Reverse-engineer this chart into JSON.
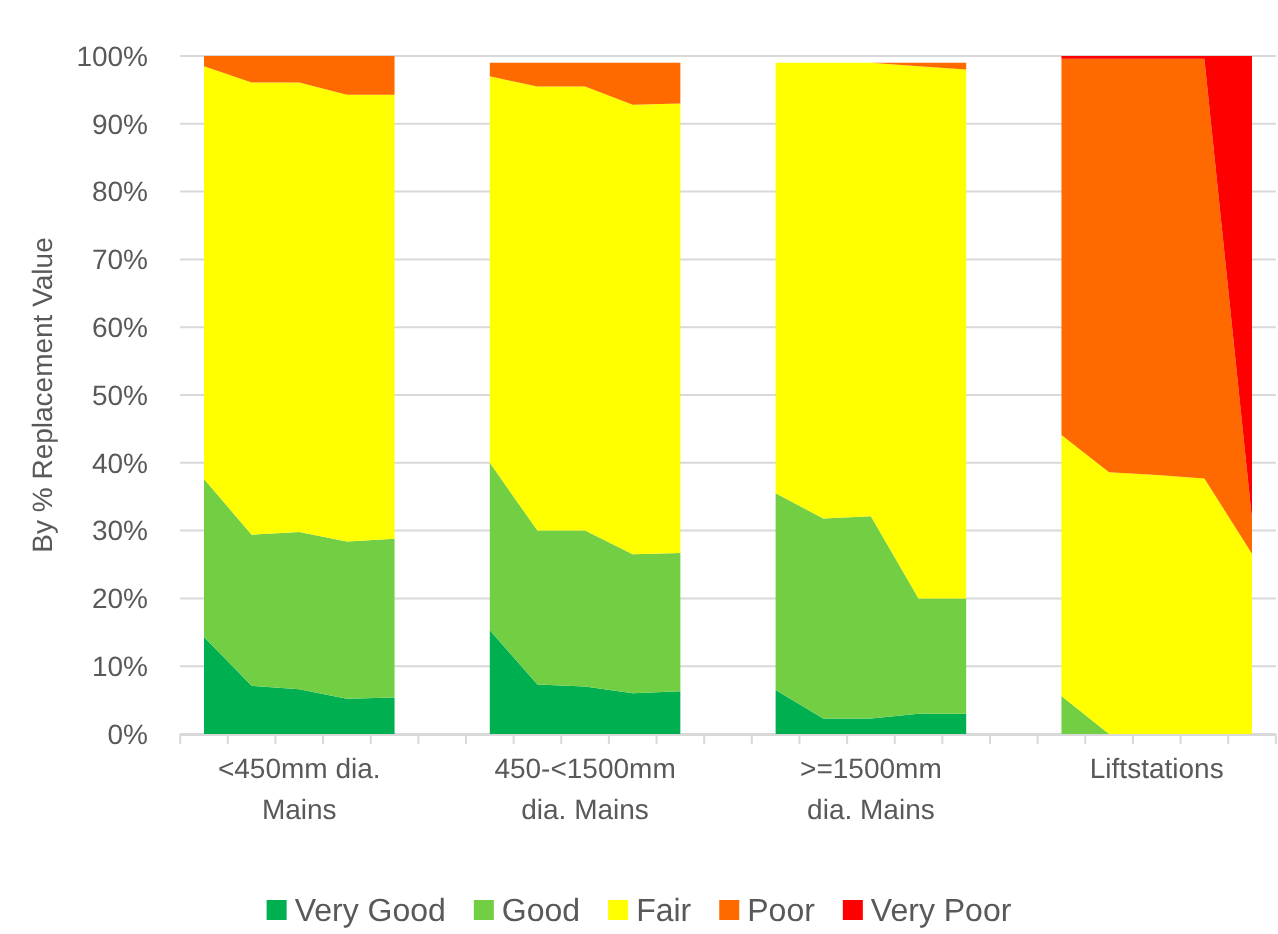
{
  "chart_data": {
    "type": "area",
    "stacked": true,
    "categories": [
      null,
      null,
      "<450mm dia. Mains",
      null,
      null,
      null,
      null,
      null,
      "450-<1500mm dia. Mains",
      null,
      null,
      null,
      null,
      null,
      ">=1500mm dia. Mains",
      null,
      null,
      null,
      null,
      null,
      "Liftstations",
      null,
      null
    ],
    "ylabel": "By % Replacement Value",
    "ylim": [
      0,
      100
    ],
    "yticks": [
      {
        "value": 0,
        "label": "0%"
      },
      {
        "value": 10,
        "label": "10%"
      },
      {
        "value": 20,
        "label": "20%"
      },
      {
        "value": 30,
        "label": "30%"
      },
      {
        "value": 40,
        "label": "40%"
      },
      {
        "value": 50,
        "label": "50%"
      },
      {
        "value": 60,
        "label": "60%"
      },
      {
        "value": 70,
        "label": "70%"
      },
      {
        "value": 80,
        "label": "80%"
      },
      {
        "value": 90,
        "label": "90%"
      },
      {
        "value": 100,
        "label": "100%"
      }
    ],
    "grid": "y",
    "legend": "bottom",
    "series": [
      {
        "name": "Very Good",
        "color": "#00b050",
        "values": [
          14.3,
          7.1,
          6.6,
          5.2,
          5.4,
          null,
          15.3,
          7.3,
          7.0,
          6.0,
          6.3,
          null,
          6.5,
          2.3,
          2.3,
          3.0,
          3.0,
          null,
          null,
          null,
          null,
          null,
          null
        ]
      },
      {
        "name": "Good",
        "color": "#72cf44",
        "values": [
          23.3,
          22.3,
          23.2,
          23.2,
          23.4,
          null,
          24.7,
          22.7,
          23.0,
          20.5,
          20.4,
          null,
          29.0,
          29.5,
          29.8,
          17.0,
          17.0,
          null,
          5.6,
          0,
          null,
          null,
          null
        ]
      },
      {
        "name": "Fair",
        "color": "#ffff00",
        "values": [
          60.9,
          66.7,
          66.3,
          65.9,
          65.5,
          null,
          57.0,
          65.5,
          65.5,
          66.3,
          66.3,
          null,
          63.5,
          67.2,
          66.9,
          78.5,
          78.0,
          null,
          38.5,
          38.6,
          38.2,
          37.7,
          26.6
        ]
      },
      {
        "name": "Poor",
        "color": "#ff6a00",
        "values": [
          1.5,
          3.9,
          3.9,
          5.7,
          5.7,
          null,
          2.0,
          3.5,
          3.5,
          6.2,
          6.0,
          null,
          null,
          null,
          0,
          0.5,
          1.0,
          null,
          55.5,
          61.0,
          61.4,
          61.9,
          5.1
        ]
      },
      {
        "name": "Very Poor",
        "color": "#ff0000",
        "values": [
          null,
          null,
          null,
          null,
          null,
          null,
          null,
          null,
          null,
          null,
          null,
          null,
          null,
          null,
          null,
          null,
          null,
          null,
          0.4,
          0.4,
          0.4,
          0.4,
          68.3
        ]
      }
    ]
  }
}
